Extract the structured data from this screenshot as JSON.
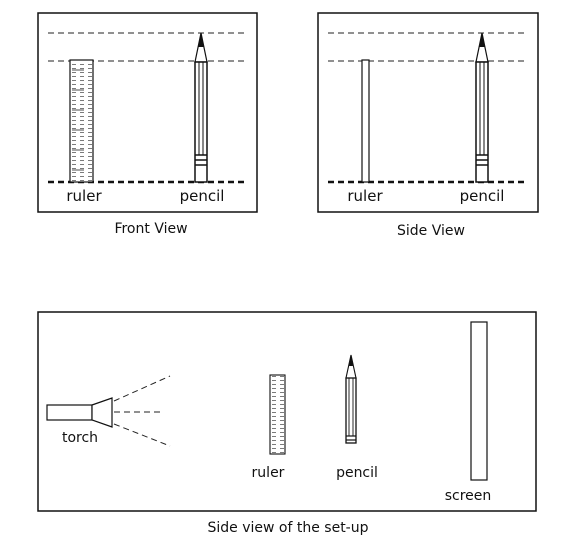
{
  "front_view": {
    "caption": "Front View",
    "ruler_label": "ruler",
    "pencil_label": "pencil"
  },
  "side_view": {
    "caption": "Side View",
    "ruler_label": "ruler",
    "pencil_label": "pencil"
  },
  "setup_view": {
    "caption": "Side view of the set-up",
    "torch_label": "torch",
    "ruler_label": "ruler",
    "pencil_label": "pencil",
    "screen_label": "screen"
  }
}
